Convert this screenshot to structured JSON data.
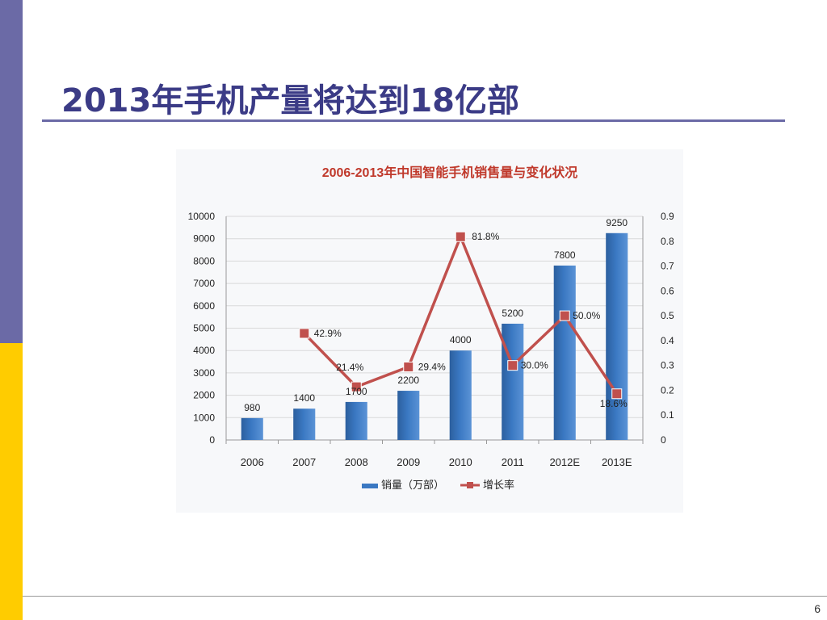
{
  "slide": {
    "title": "2013年手机产量将达到18亿部",
    "page_number": "6"
  },
  "colors": {
    "sidebar_top": "#6b6aa6",
    "sidebar_bottom": "#ffcc00",
    "title": "#3b3b86",
    "chart_title": "#c0392b",
    "bar": "#3a78c2",
    "line": "#c0504d"
  },
  "chart_data": {
    "type": "bar",
    "title": "2006-2013年中国智能手机销售量与变化状况",
    "categories": [
      "2006",
      "2007",
      "2008",
      "2009",
      "2010",
      "2011",
      "2012E",
      "2013E"
    ],
    "series": [
      {
        "name": "销量（万部）",
        "type": "bar",
        "axis": "left",
        "values": [
          980,
          1400,
          1700,
          2200,
          4000,
          5200,
          7800,
          9250
        ],
        "labels": [
          "980",
          "1400",
          "1700",
          "2200",
          "4000",
          "5200",
          "7800",
          "9250"
        ]
      },
      {
        "name": "增长率",
        "type": "line",
        "axis": "right",
        "values": [
          null,
          0.429,
          0.214,
          0.294,
          0.818,
          0.3,
          0.5,
          0.186
        ],
        "labels": [
          null,
          "42.9%",
          "21.4%",
          "29.4%",
          "81.8%",
          "30.0%",
          "50.0%",
          "18.6%"
        ]
      }
    ],
    "y_left": {
      "ylim": [
        0,
        10000
      ],
      "ticks": [
        "0",
        "1000",
        "2000",
        "3000",
        "4000",
        "5000",
        "6000",
        "7000",
        "8000",
        "9000",
        "10000"
      ]
    },
    "y_right": {
      "ylim": [
        0,
        0.9
      ],
      "ticks": [
        "0",
        "0.1",
        "0.2",
        "0.3",
        "0.4",
        "0.5",
        "0.6",
        "0.7",
        "0.8",
        "0.9"
      ]
    },
    "grid": true,
    "legend": "bottom"
  }
}
